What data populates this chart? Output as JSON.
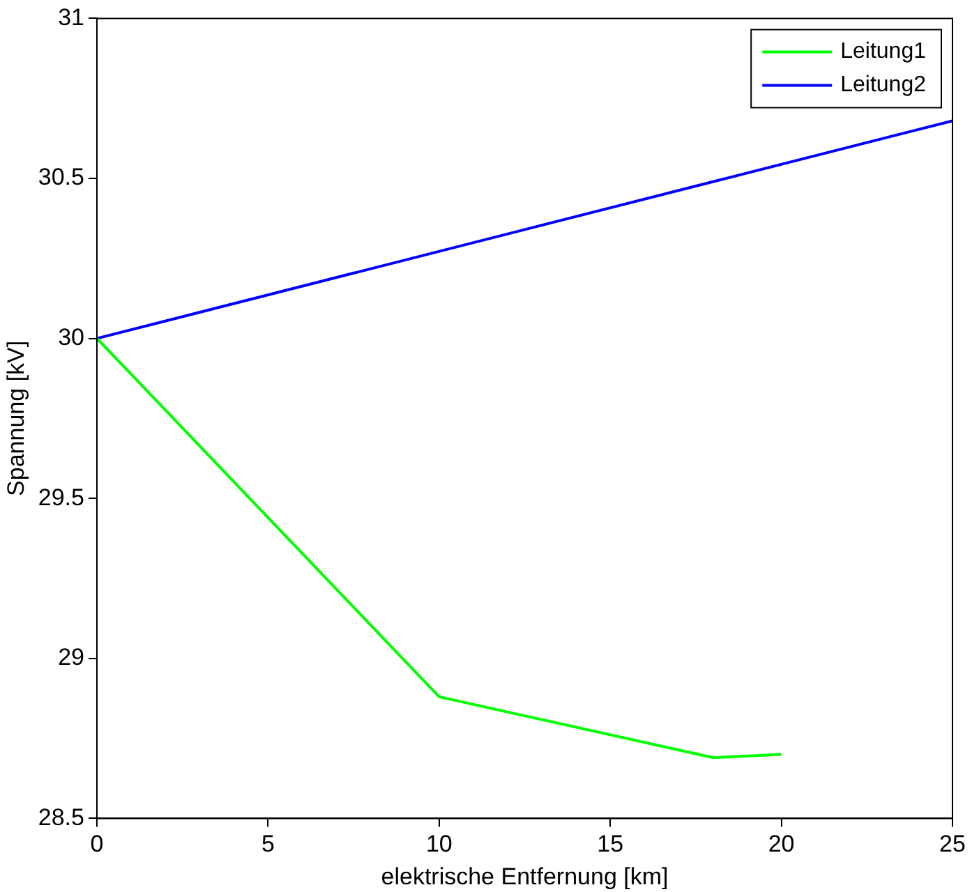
{
  "chart_data": {
    "type": "line",
    "xlabel": "elektrische Entfernung [km]",
    "ylabel": "Spannung [kV]",
    "xlim": [
      0,
      25
    ],
    "xticks": [
      0,
      5,
      10,
      15,
      20,
      25
    ],
    "ylim": [
      28.5,
      31
    ],
    "yticks": [
      28.5,
      29,
      29.5,
      30,
      30.5,
      31
    ],
    "grid": false,
    "legend": "top right",
    "marker": "none",
    "line_style": "solid",
    "series": [
      {
        "name": "Leitung1",
        "color": "#00ff00",
        "x": [
          0,
          10,
          18,
          20
        ],
        "values": [
          30,
          28.88,
          28.69,
          28.7
        ]
      },
      {
        "name": "Leitung2",
        "color": "#0000ff",
        "x": [
          0,
          25
        ],
        "values": [
          30,
          30.68
        ]
      }
    ]
  }
}
